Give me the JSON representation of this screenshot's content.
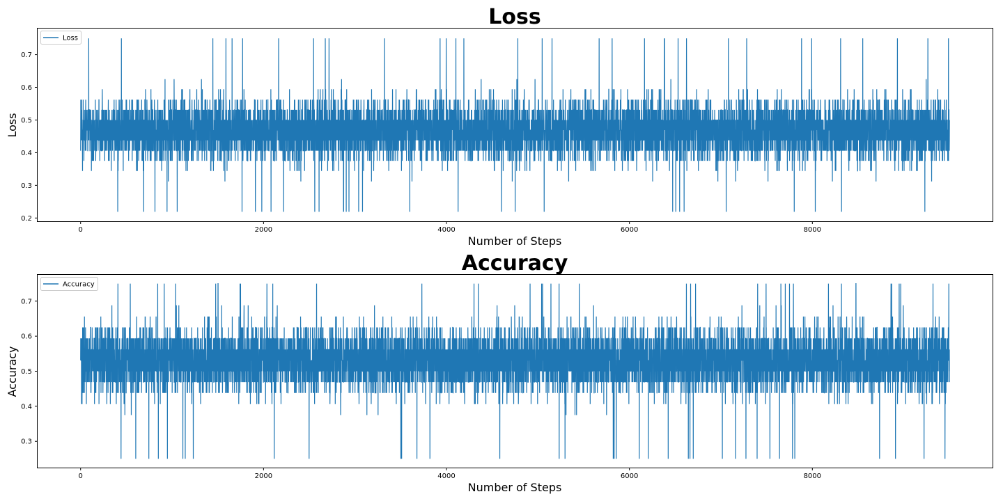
{
  "chart_data": [
    {
      "type": "line",
      "title": "Loss",
      "xlabel": "Number of Steps",
      "ylabel": "Loss",
      "xlim": [
        -470,
        9970
      ],
      "ylim": [
        0.19,
        0.78
      ],
      "xticks": [
        0,
        2000,
        4000,
        6000,
        8000
      ],
      "yticks": [
        0.2,
        0.3,
        0.4,
        0.5,
        0.6,
        0.7
      ],
      "grid": false,
      "legend": "upper-left",
      "color": "#1f77b4",
      "series": [
        {
          "name": "Loss",
          "n_points": 9500,
          "levels": [
            0.219,
            0.25,
            0.281,
            0.312,
            0.344,
            0.375,
            0.406,
            0.438,
            0.469,
            0.5,
            0.531,
            0.562,
            0.594,
            0.625,
            0.656,
            0.688,
            0.75
          ],
          "mean": 0.48,
          "min": 0.21,
          "max": 0.75
        }
      ]
    },
    {
      "type": "line",
      "title": "Accuracy",
      "xlabel": "Number of Steps",
      "ylabel": "Accuracy",
      "xlim": [
        -470,
        9970
      ],
      "ylim": [
        0.225,
        0.775
      ],
      "xticks": [
        0,
        2000,
        4000,
        6000,
        8000
      ],
      "yticks": [
        0.3,
        0.4,
        0.5,
        0.6,
        0.7
      ],
      "grid": false,
      "legend": "upper-left",
      "color": "#1f77b4",
      "series": [
        {
          "name": "Accuracy",
          "n_points": 9500,
          "levels": [
            0.25,
            0.281,
            0.312,
            0.344,
            0.375,
            0.406,
            0.438,
            0.469,
            0.5,
            0.531,
            0.562,
            0.594,
            0.625,
            0.656,
            0.688,
            0.719,
            0.75
          ],
          "mean": 0.52,
          "min": 0.25,
          "max": 0.75
        }
      ]
    }
  ]
}
